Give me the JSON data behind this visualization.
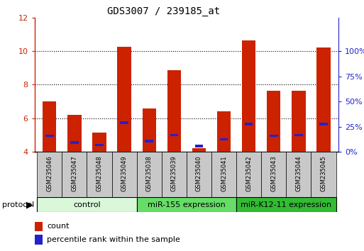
{
  "title": "GDS3007 / 239185_at",
  "samples": [
    "GSM235046",
    "GSM235047",
    "GSM235048",
    "GSM235049",
    "GSM235038",
    "GSM235039",
    "GSM235040",
    "GSM235041",
    "GSM235042",
    "GSM235043",
    "GSM235044",
    "GSM235045"
  ],
  "count_values": [
    7.0,
    6.2,
    5.15,
    10.25,
    6.6,
    8.85,
    4.2,
    6.4,
    10.65,
    7.65,
    7.65,
    10.2
  ],
  "percentile_values": [
    4.95,
    4.55,
    4.4,
    5.75,
    4.65,
    5.0,
    4.35,
    4.75,
    5.65,
    4.95,
    5.0,
    5.65
  ],
  "y_min": 4,
  "y_max": 12,
  "y_ticks": [
    4,
    6,
    8,
    10,
    12
  ],
  "right_y_labels": [
    "0%",
    "25%",
    "50%",
    "75%",
    "100%"
  ],
  "right_y_positions": [
    4.0,
    5.5,
    7.0,
    8.5,
    10.0
  ],
  "bar_color": "#cc2200",
  "percentile_color": "#2222cc",
  "bar_width": 0.55,
  "groups": [
    {
      "label": "control",
      "start": 0,
      "end": 4,
      "color": "#d9f7d9"
    },
    {
      "label": "miR-155 expression",
      "start": 4,
      "end": 8,
      "color": "#66dd66"
    },
    {
      "label": "miR-K12-11 expression",
      "start": 8,
      "end": 12,
      "color": "#33bb33"
    }
  ],
  "protocol_label": "protocol",
  "legend_count": "count",
  "legend_percentile": "percentile rank within the sample",
  "left_axis_color": "#cc2200",
  "right_axis_color": "#2222cc",
  "title_fontsize": 10,
  "tick_fontsize": 8,
  "sample_fontsize": 6,
  "group_fontsize": 8,
  "legend_fontsize": 8
}
